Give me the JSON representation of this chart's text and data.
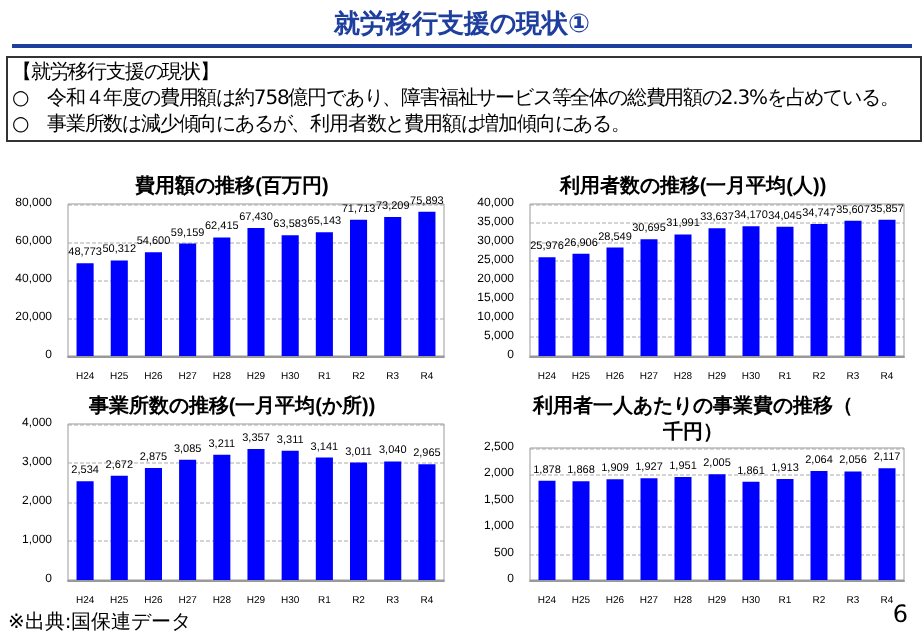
{
  "chart_data": [
    {
      "type": "bar",
      "title": "費用額の推移(百万円)",
      "categories": [
        "H24",
        "H25",
        "H26",
        "H27",
        "H28",
        "H29",
        "H30",
        "R1",
        "R2",
        "R3",
        "R4"
      ],
      "values": [
        48773,
        50312,
        54600,
        59159,
        62415,
        67430,
        63583,
        65143,
        71713,
        73209,
        75893
      ],
      "value_labels": [
        "48,773",
        "50,312",
        "54,600",
        "59,159",
        "62,415",
        "67,430",
        "63,583",
        "65,143",
        "71,713",
        "73,209",
        "75,893"
      ],
      "color": "#0000ff",
      "ylim": [
        0,
        80000
      ],
      "yticks": [
        {
          "value": 0,
          "label": "0"
        },
        {
          "value": 20000,
          "label": "20,000"
        },
        {
          "value": 40000,
          "label": "40,000"
        },
        {
          "value": 60000,
          "label": "60,000"
        },
        {
          "value": 80000,
          "label": "80,000"
        }
      ],
      "grid": "y",
      "annotations": [
        "就労移行支援の現状①",
        "【就労移行支援の現状】",
        "○　令和４年度の費用額は約758億円であり、障害福祉サービス等全体の総費用額の2.3%を占めている。",
        "○　事業所数は減少傾向にあるが、利用者数と費用額は増加傾向にある。",
        "※出典:国保連データ",
        "6"
      ]
    },
    {
      "type": "bar",
      "title": "利用者数の推移(一月平均(人))",
      "categories": [
        "H24",
        "H25",
        "H26",
        "H27",
        "H28",
        "H29",
        "H30",
        "R1",
        "R2",
        "R3",
        "R4"
      ],
      "values": [
        25976,
        26906,
        28549,
        30695,
        31991,
        33637,
        34170,
        34045,
        34747,
        35607,
        35857
      ],
      "value_labels": [
        "25,976",
        "26,906",
        "28,549",
        "30,695",
        "31,991",
        "33,637",
        "34,170",
        "34,045",
        "34,747",
        "35,607",
        "35,857"
      ],
      "color": "#0000ff",
      "ylim": [
        0,
        40000
      ],
      "yticks": [
        {
          "value": 0,
          "label": "0"
        },
        {
          "value": 5000,
          "label": "5,000"
        },
        {
          "value": 10000,
          "label": "10,000"
        },
        {
          "value": 15000,
          "label": "15,000"
        },
        {
          "value": 20000,
          "label": "20,000"
        },
        {
          "value": 25000,
          "label": "25,000"
        },
        {
          "value": 30000,
          "label": "30,000"
        },
        {
          "value": 35000,
          "label": "35,000"
        },
        {
          "value": 40000,
          "label": "40,000"
        }
      ],
      "grid": "y"
    },
    {
      "type": "bar",
      "title": "事業所数の推移(一月平均(か所))",
      "categories": [
        "H24",
        "H25",
        "H26",
        "H27",
        "H28",
        "H29",
        "H30",
        "R1",
        "R2",
        "R3",
        "R4"
      ],
      "values": [
        2534,
        2672,
        2875,
        3085,
        3211,
        3357,
        3311,
        3141,
        3011,
        3040,
        2965
      ],
      "value_labels": [
        "2,534",
        "2,672",
        "2,875",
        "3,085",
        "3,211",
        "3,357",
        "3,311",
        "3,141",
        "3,011",
        "3,040",
        "2,965"
      ],
      "color": "#0000ff",
      "ylim": [
        0,
        4000
      ],
      "yticks": [
        {
          "value": 0,
          "label": "0"
        },
        {
          "value": 1000,
          "label": "1,000"
        },
        {
          "value": 2000,
          "label": "2,000"
        },
        {
          "value": 3000,
          "label": "3,000"
        },
        {
          "value": 4000,
          "label": "4,000"
        }
      ],
      "grid": "y"
    },
    {
      "type": "bar",
      "title": "利用者一人あたりの事業費の推移（千円）",
      "categories": [
        "H24",
        "H25",
        "H26",
        "H27",
        "H28",
        "H29",
        "H30",
        "R1",
        "R2",
        "R3",
        "R4"
      ],
      "values": [
        1878,
        1868,
        1909,
        1927,
        1951,
        2005,
        1861,
        1913,
        2064,
        2056,
        2117
      ],
      "value_labels": [
        "1,878",
        "1,868",
        "1,909",
        "1,927",
        "1,951",
        "2,005",
        "1,861",
        "1,913",
        "2,064",
        "2,056",
        "2,117"
      ],
      "color": "#0000ff",
      "ylim": [
        0,
        2500
      ],
      "yticks": [
        {
          "value": 0,
          "label": "0"
        },
        {
          "value": 500,
          "label": "500"
        },
        {
          "value": 1000,
          "label": "1,000"
        },
        {
          "value": 1500,
          "label": "1,500"
        },
        {
          "value": 2000,
          "label": "2,000"
        },
        {
          "value": 2500,
          "label": "2,500"
        }
      ],
      "grid": "y"
    }
  ]
}
